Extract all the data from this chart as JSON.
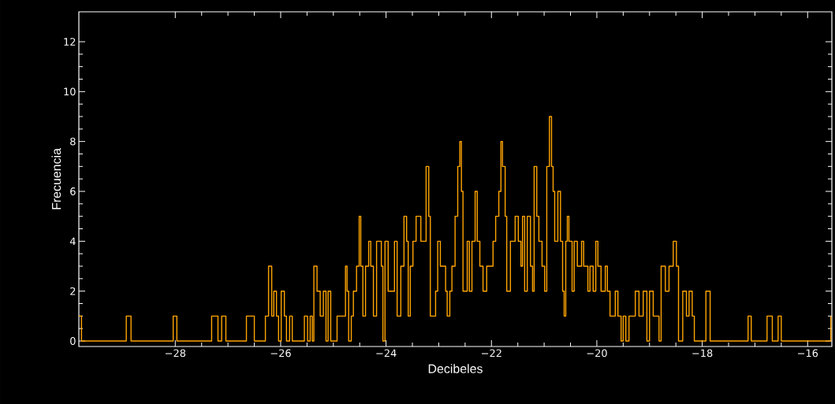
{
  "chart_data": {
    "type": "step",
    "xlabel": "Decibeles",
    "ylabel": "Frecuencia",
    "color": "#ffa500",
    "xlim": [
      -29.83,
      -15.54
    ],
    "ylim": [
      -0.22,
      13.2
    ],
    "xticks": [
      {
        "value": -28,
        "label": "−28"
      },
      {
        "value": -26,
        "label": "−26"
      },
      {
        "value": -24,
        "label": "−24"
      },
      {
        "value": -22,
        "label": "−22"
      },
      {
        "value": -20,
        "label": "−20"
      },
      {
        "value": -18,
        "label": "−18"
      },
      {
        "value": -16,
        "label": "−16"
      }
    ],
    "yticks": [
      0,
      2,
      4,
      6,
      8,
      10,
      12
    ],
    "x": [
      -29.83,
      -29.78,
      -28.93,
      -28.84,
      -28.04,
      -27.97,
      -27.31,
      -27.19,
      -27.12,
      -27.04,
      -26.65,
      -26.5,
      -26.29,
      -26.23,
      -26.17,
      -26.13,
      -26.08,
      -26.04,
      -25.99,
      -25.93,
      -25.89,
      -25.83,
      -25.78,
      -25.55,
      -25.49,
      -25.44,
      -25.4,
      -25.37,
      -25.31,
      -25.25,
      -25.19,
      -25.14,
      -25.1,
      -25.05,
      -24.99,
      -24.93,
      -24.77,
      -24.74,
      -24.71,
      -24.66,
      -24.62,
      -24.56,
      -24.51,
      -24.48,
      -24.44,
      -24.39,
      -24.33,
      -24.29,
      -24.24,
      -24.18,
      -24.09,
      -24.06,
      -24.02,
      -23.96,
      -23.84,
      -23.79,
      -23.72,
      -23.66,
      -23.61,
      -23.58,
      -23.54,
      -23.49,
      -23.43,
      -23.34,
      -23.24,
      -23.19,
      -23.16,
      -23.06,
      -23.02,
      -22.97,
      -22.87,
      -22.84,
      -22.79,
      -22.75,
      -22.69,
      -22.64,
      -22.6,
      -22.57,
      -22.54,
      -22.46,
      -22.42,
      -22.37,
      -22.31,
      -22.27,
      -22.22,
      -22.16,
      -22.09,
      -21.97,
      -21.92,
      -21.86,
      -21.82,
      -21.79,
      -21.74,
      -21.71,
      -21.64,
      -21.55,
      -21.49,
      -21.44,
      -21.41,
      -21.37,
      -21.32,
      -21.26,
      -21.22,
      -21.19,
      -21.14,
      -21.1,
      -21.04,
      -20.99,
      -20.95,
      -20.9,
      -20.86,
      -20.83,
      -20.8,
      -20.74,
      -20.69,
      -20.65,
      -20.62,
      -20.59,
      -20.56,
      -20.53,
      -20.47,
      -20.43,
      -20.37,
      -20.29,
      -20.25,
      -20.17,
      -20.13,
      -20.07,
      -20.02,
      -19.98,
      -19.92,
      -19.84,
      -19.8,
      -19.75,
      -19.65,
      -19.6,
      -19.54,
      -19.5,
      -19.45,
      -19.39,
      -19.27,
      -19.2,
      -19.12,
      -19.05,
      -19.0,
      -18.93,
      -18.82,
      -18.78,
      -18.7,
      -18.63,
      -18.55,
      -18.49,
      -18.45,
      -18.37,
      -18.3,
      -18.25,
      -18.19,
      -18.15,
      -17.93,
      -17.85,
      -17.13,
      -17.07,
      -16.77,
      -16.67,
      -16.56,
      -16.5,
      -15.56
    ],
    "values": [
      1,
      0,
      1,
      0,
      1,
      0,
      1,
      0,
      1,
      0,
      1,
      0,
      1,
      3,
      1,
      2,
      1,
      0,
      2,
      1,
      0,
      1,
      0,
      1,
      0,
      1,
      0,
      3,
      2,
      1,
      2,
      0,
      2,
      0,
      0,
      1,
      3,
      2,
      0,
      1,
      2,
      3,
      5,
      3,
      1,
      3,
      4,
      3,
      1,
      4,
      3,
      0,
      4,
      2,
      4,
      1,
      3,
      5,
      4,
      1,
      3,
      4,
      5,
      4,
      7,
      5,
      1,
      2,
      4,
      3,
      2,
      1,
      2,
      3,
      5,
      7,
      8,
      6,
      2,
      4,
      2,
      4,
      6,
      4,
      3,
      2,
      3,
      4,
      5,
      6,
      8,
      7,
      5,
      2,
      4,
      5,
      4,
      3,
      5,
      2,
      5,
      3,
      2,
      7,
      5,
      4,
      3,
      2,
      7,
      9,
      7,
      6,
      4,
      6,
      4,
      2,
      1,
      4,
      5,
      4,
      2,
      4,
      3,
      4,
      3,
      2,
      3,
      2,
      4,
      3,
      2,
      3,
      2,
      1,
      2,
      1,
      0,
      1,
      0,
      1,
      2,
      1,
      2,
      0,
      2,
      1,
      0,
      3,
      2,
      3,
      4,
      3,
      0,
      2,
      1,
      2,
      1,
      0,
      2,
      0,
      1,
      0,
      1,
      0,
      1,
      0,
      1
    ]
  }
}
